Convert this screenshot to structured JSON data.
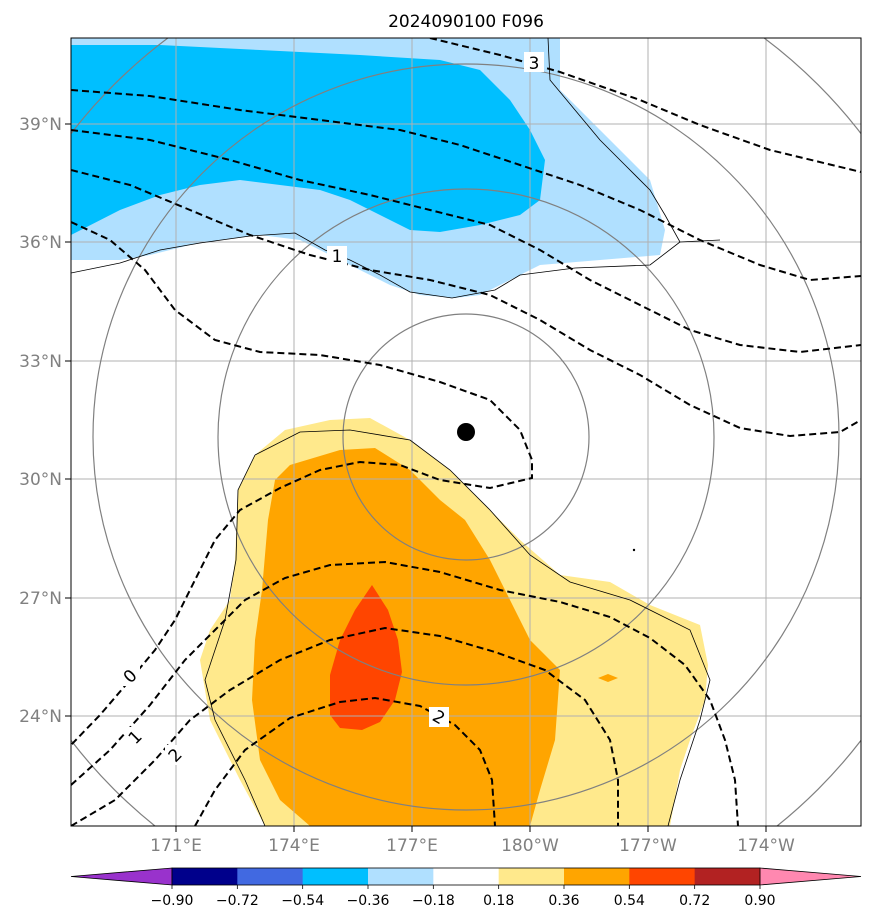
{
  "title": "2024090100 F096",
  "map": {
    "lon_ticks": [
      "171°E",
      "174°E",
      "177°E",
      "180°W",
      "177°W",
      "174°W"
    ],
    "lat_ticks": [
      "39°N",
      "36°N",
      "33°N",
      "30°N",
      "27°N",
      "24°N"
    ],
    "center_marker": "storm-center-dot"
  },
  "contours": {
    "labels": [
      "3",
      "1",
      "0",
      "1",
      "2",
      "2"
    ]
  },
  "colorbar": {
    "ticks": [
      "−0.90",
      "−0.72",
      "−0.54",
      "−0.36",
      "−0.18",
      "0.18",
      "0.36",
      "0.54",
      "0.72",
      "0.90"
    ],
    "colors": [
      "#9932cc",
      "#00008b",
      "#4169e1",
      "#00bfff",
      "#b0e0ff",
      "#ffffff",
      "#ffe98c",
      "#ffa500",
      "#ff4500",
      "#b22222",
      "#ff88b0"
    ],
    "under_color": "#9932cc",
    "over_color": "#ff88b0"
  }
}
